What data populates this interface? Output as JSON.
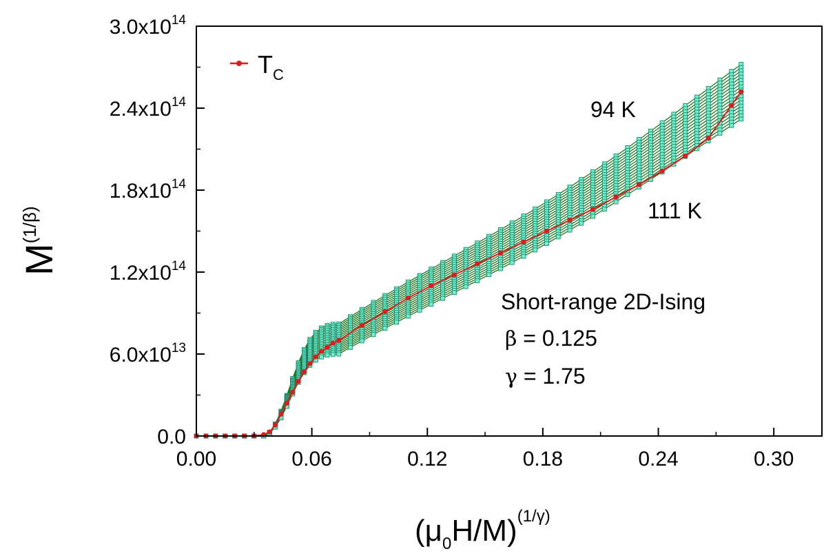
{
  "chart_data": {
    "type": "line",
    "title": "",
    "xlabel": {
      "base": "(μ",
      "sub": "0",
      "mid": "H/M)",
      "sup": "(1/γ)"
    },
    "ylabel": {
      "base": "M",
      "sup": "(1/β)"
    },
    "xlim": [
      0.0,
      0.325
    ],
    "ylim": [
      0,
      300000000000000.0
    ],
    "x_ticks": [
      0.0,
      0.06,
      0.12,
      0.18,
      0.24,
      0.3
    ],
    "x_tick_labels": [
      "0.00",
      "0.06",
      "0.12",
      "0.18",
      "0.24",
      "0.30"
    ],
    "y_ticks": [
      0,
      60000000000000.0,
      120000000000000.0,
      180000000000000.0,
      240000000000000.0,
      300000000000000.0
    ],
    "y_tick_labels": [
      {
        "base": "0.0",
        "exp": ""
      },
      {
        "base": "6.0x10",
        "exp": "13"
      },
      {
        "base": "1.2x10",
        "exp": "14"
      },
      {
        "base": "1.8x10",
        "exp": "14"
      },
      {
        "base": "2.4x10",
        "exp": "14"
      },
      {
        "base": "3.0x10",
        "exp": "14"
      }
    ],
    "isotherm_range": {
      "first_T": 94,
      "last_T": 111,
      "count": 18
    },
    "isotherm_start": [
      0.0,
      0.0
    ],
    "isotherm_onset": [
      0.035,
      0.0
    ],
    "isotherm_knee_x": 0.074,
    "isotherm_knee_y": [
      82000000000000.0,
      60000000000000.0
    ],
    "isotherm_end_x": 0.283,
    "isotherm_end_y": [
      272000000000000.0,
      232000000000000.0
    ],
    "tc_series": {
      "name": "T",
      "name_sub": "C",
      "color": "#d81e1e",
      "x": [
        0.0,
        0.005,
        0.01,
        0.015,
        0.02,
        0.025,
        0.03,
        0.035,
        0.038,
        0.041,
        0.044,
        0.047,
        0.05,
        0.053,
        0.056,
        0.059,
        0.062,
        0.065,
        0.068,
        0.071,
        0.074,
        0.086,
        0.098,
        0.11,
        0.122,
        0.134,
        0.146,
        0.158,
        0.17,
        0.182,
        0.194,
        0.206,
        0.218,
        0.23,
        0.242,
        0.254,
        0.266,
        0.278,
        0.283
      ],
      "y": [
        0.0,
        0.0,
        0.0,
        0.0,
        0.0,
        0.0,
        0.0,
        1000000000000.0,
        3000000000000.0,
        8000000000000.0,
        16000000000000.0,
        24000000000000.0,
        32000000000000.0,
        40000000000000.0,
        47000000000000.0,
        53000000000000.0,
        58000000000000.0,
        62000000000000.0,
        65000000000000.0,
        68000000000000.0,
        70000000000000.0,
        81000000000000.0,
        91000000000000.0,
        101000000000000.0,
        110000000000000.0,
        118000000000000.0,
        126000000000000.0,
        134000000000000.0,
        142000000000000.0,
        150000000000000.0,
        158000000000000.0,
        166000000000000.0,
        175000000000000.0,
        184000000000000.0,
        194000000000000.0,
        205000000000000.0,
        218000000000000.0,
        242000000000000.0,
        252000000000000.0
      ]
    },
    "isotherm_colors": {
      "line": "#1e7a1e",
      "marker_fill": "#6ff0cc",
      "marker_stroke": "#1f8a70"
    },
    "annotations": {
      "label_94K": "94 K",
      "label_111K": "111 K",
      "model": "Short-range 2D-Ising",
      "beta_sym": "β",
      "beta_val": " = 0.125",
      "gamma_sym": "γ",
      "gamma_val": " = 1.75"
    }
  }
}
